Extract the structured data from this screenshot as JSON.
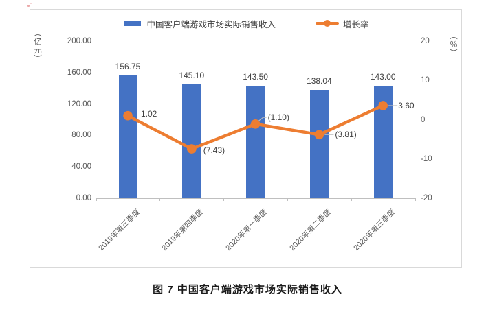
{
  "page": {
    "caption": "图 7  中国客户端游戏市场实际销售收入"
  },
  "legend": {
    "bar_label": "中国客户端游戏市场实际销售收入",
    "line_label": "增长率"
  },
  "colors": {
    "bar": "#4472C4",
    "line": "#ED7D31",
    "axis_text": "#595959",
    "label_text": "#404040",
    "frame_border": "#d9d9d9",
    "axis_line": "#bfbfbf"
  },
  "chart_data": {
    "type": "bar",
    "subtype": "combo_bar_line_dual_axis",
    "title": "",
    "caption": "图 7  中国客户端游戏市场实际销售收入",
    "categories": [
      "2019年第三季度",
      "2019年第四季度",
      "2020年第一季度",
      "2020年第二季度",
      "2020年第三季度"
    ],
    "series": [
      {
        "name": "中国客户端游戏市场实际销售收入",
        "type": "bar",
        "axis": "left",
        "color": "#4472C4",
        "values": [
          156.75,
          145.1,
          143.5,
          138.04,
          143.0
        ],
        "data_labels": [
          "156.75",
          "145.10",
          "143.50",
          "138.04",
          "143.00"
        ]
      },
      {
        "name": "增长率",
        "type": "line",
        "axis": "right",
        "color": "#ED7D31",
        "values": [
          1.02,
          -7.43,
          -1.1,
          -3.81,
          3.6
        ],
        "data_labels": [
          "1.02",
          "(7.43)",
          "(1.10)",
          "(3.81)",
          "3.60"
        ]
      }
    ],
    "left_axis": {
      "title": "（亿元）",
      "min": 0,
      "max": 200,
      "tick_labels": [
        "200.00",
        "160.00",
        "120.00",
        "80.00",
        "40.00",
        "0.00"
      ]
    },
    "right_axis": {
      "title": "（％）",
      "min": -20,
      "max": 20,
      "tick_labels": [
        "20",
        "10",
        "0",
        "-10",
        "-20"
      ]
    },
    "legend_position": "top",
    "gridlines": false
  }
}
